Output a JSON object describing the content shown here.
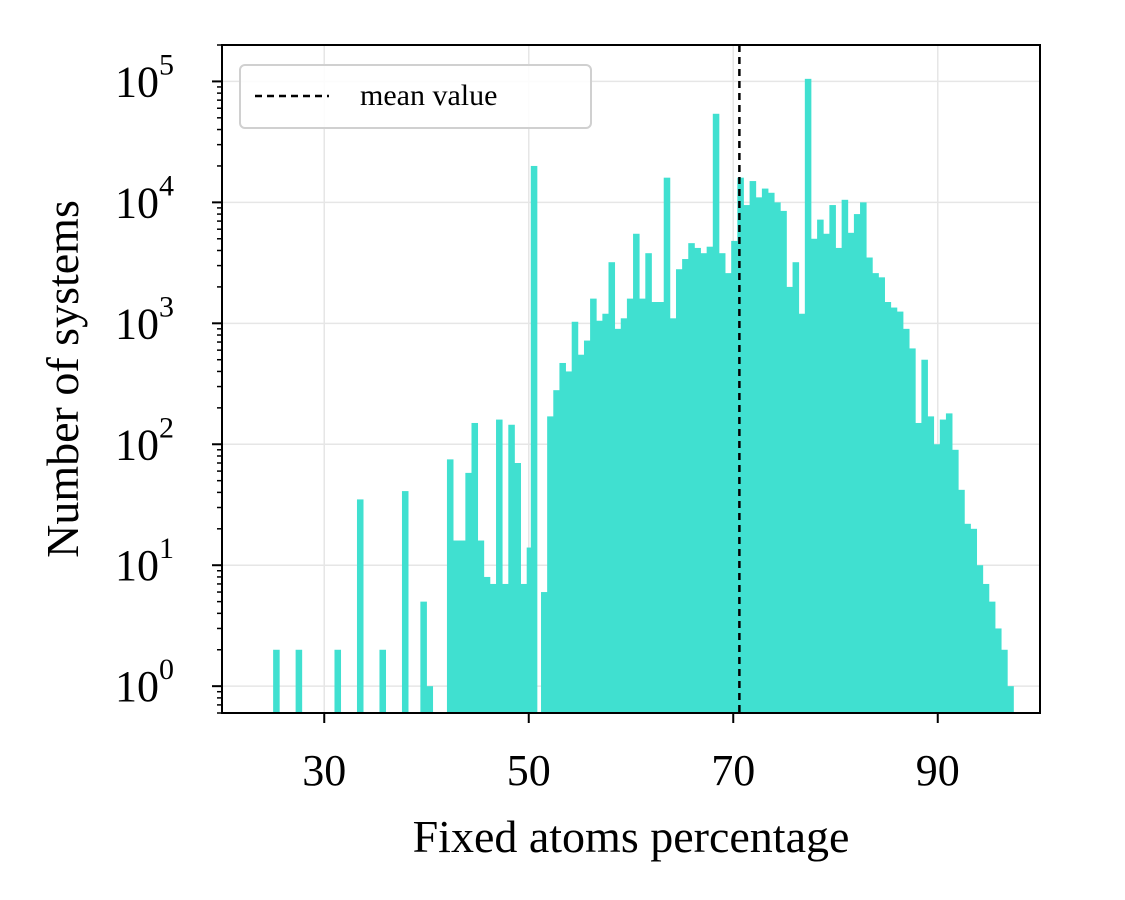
{
  "chart_data": {
    "type": "bar",
    "subtype": "histogram",
    "title": "",
    "xlabel": "Fixed atoms percentage",
    "ylabel": "Number of systems",
    "xlim": [
      20,
      100
    ],
    "ylim": [
      0.6,
      200000
    ],
    "yscale": "log",
    "grid": true,
    "bar_color": "#40E0D0",
    "bin_width": 0.6,
    "x_ticks": [
      {
        "value": 30,
        "label": "30"
      },
      {
        "value": 50,
        "label": "50"
      },
      {
        "value": 70,
        "label": "70"
      },
      {
        "value": 90,
        "label": "90"
      }
    ],
    "y_ticks": [
      {
        "value": 1,
        "base": "10",
        "exp": "0"
      },
      {
        "value": 10,
        "base": "10",
        "exp": "1"
      },
      {
        "value": 100,
        "base": "10",
        "exp": "2"
      },
      {
        "value": 1000,
        "base": "10",
        "exp": "3"
      },
      {
        "value": 10000,
        "base": "10",
        "exp": "4"
      },
      {
        "value": 100000,
        "base": "10",
        "exp": "5"
      }
    ],
    "mean_value": 70.6,
    "legend": {
      "location": "top-left",
      "entries": [
        {
          "label": "mean value",
          "style": "dashed",
          "color": "#000000"
        }
      ]
    },
    "bins": [
      [
        25.0,
        2
      ],
      [
        27.2,
        2
      ],
      [
        31.0,
        2
      ],
      [
        33.2,
        35
      ],
      [
        35.4,
        2
      ],
      [
        37.6,
        41
      ],
      [
        39.4,
        5
      ],
      [
        40.0,
        1
      ],
      [
        42.0,
        75
      ],
      [
        42.6,
        16
      ],
      [
        43.2,
        16
      ],
      [
        43.8,
        58
      ],
      [
        44.4,
        150
      ],
      [
        45.0,
        16
      ],
      [
        45.6,
        8
      ],
      [
        46.2,
        7
      ],
      [
        46.8,
        160
      ],
      [
        47.4,
        7
      ],
      [
        48.0,
        145
      ],
      [
        48.6,
        70
      ],
      [
        49.2,
        7
      ],
      [
        49.8,
        14
      ],
      [
        50.2,
        20000
      ],
      [
        51.2,
        6
      ],
      [
        51.8,
        170
      ],
      [
        52.4,
        280
      ],
      [
        53.0,
        470
      ],
      [
        53.6,
        400
      ],
      [
        54.2,
        1030
      ],
      [
        54.8,
        550
      ],
      [
        55.4,
        720
      ],
      [
        56.0,
        1600
      ],
      [
        56.6,
        1050
      ],
      [
        57.2,
        1200
      ],
      [
        57.8,
        3200
      ],
      [
        58.4,
        900
      ],
      [
        59.0,
        1100
      ],
      [
        59.6,
        1600
      ],
      [
        60.2,
        5500
      ],
      [
        60.8,
        1600
      ],
      [
        61.4,
        3800
      ],
      [
        62.0,
        1500
      ],
      [
        62.6,
        1500
      ],
      [
        63.2,
        16000
      ],
      [
        63.8,
        1100
      ],
      [
        64.4,
        2800
      ],
      [
        65.0,
        3400
      ],
      [
        65.6,
        4600
      ],
      [
        66.2,
        4200
      ],
      [
        66.8,
        3800
      ],
      [
        67.4,
        4300
      ],
      [
        68.0,
        54000
      ],
      [
        68.6,
        3800
      ],
      [
        69.2,
        2600
      ],
      [
        69.8,
        4800
      ],
      [
        70.4,
        16000
      ],
      [
        71.0,
        9500
      ],
      [
        71.6,
        15000
      ],
      [
        72.2,
        11000
      ],
      [
        72.8,
        13000
      ],
      [
        73.4,
        12000
      ],
      [
        74.0,
        10000
      ],
      [
        74.6,
        8500
      ],
      [
        75.2,
        2000
      ],
      [
        75.8,
        3200
      ],
      [
        76.4,
        1200
      ],
      [
        77.0,
        105000
      ],
      [
        77.6,
        5000
      ],
      [
        78.2,
        7200
      ],
      [
        78.8,
        5500
      ],
      [
        79.4,
        9500
      ],
      [
        80.0,
        4200
      ],
      [
        80.6,
        10500
      ],
      [
        81.2,
        5600
      ],
      [
        81.8,
        8000
      ],
      [
        82.4,
        10000
      ],
      [
        83.0,
        3500
      ],
      [
        83.6,
        2600
      ],
      [
        84.2,
        2400
      ],
      [
        84.8,
        1500
      ],
      [
        85.4,
        1350
      ],
      [
        86.0,
        1250
      ],
      [
        86.6,
        900
      ],
      [
        87.2,
        620
      ],
      [
        87.8,
        150
      ],
      [
        88.4,
        500
      ],
      [
        89.0,
        170
      ],
      [
        89.6,
        100
      ],
      [
        90.2,
        160
      ],
      [
        90.8,
        180
      ],
      [
        91.4,
        90
      ],
      [
        92.0,
        42
      ],
      [
        92.6,
        22
      ],
      [
        93.2,
        20
      ],
      [
        93.8,
        10
      ],
      [
        94.4,
        7
      ],
      [
        95.0,
        5
      ],
      [
        95.6,
        3
      ],
      [
        96.2,
        2
      ],
      [
        96.8,
        1
      ]
    ]
  }
}
